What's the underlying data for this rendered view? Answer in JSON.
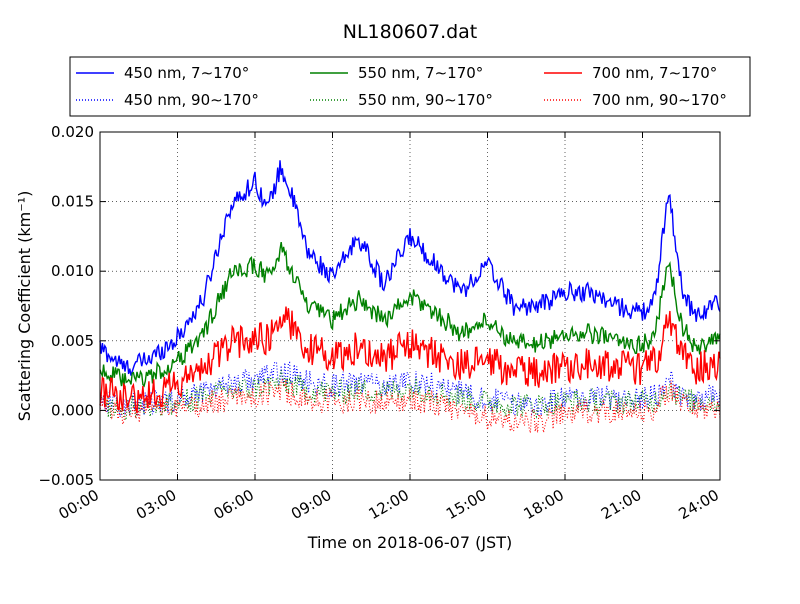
{
  "chart_data": {
    "type": "line",
    "title": "NL180607.dat",
    "xlabel": "Time on 2018-06-07 (JST)",
    "ylabel": "Scattering Coefficient (km⁻¹)",
    "xlim": [
      "00:00",
      "24:00"
    ],
    "ylim": [
      -0.005,
      0.02
    ],
    "x_ticks": [
      "00:00",
      "03:00",
      "06:00",
      "09:00",
      "12:00",
      "15:00",
      "18:00",
      "21:00",
      "24:00"
    ],
    "y_ticks": [
      "−0.005",
      "0.000",
      "0.005",
      "0.010",
      "0.015",
      "0.020"
    ],
    "grid": true,
    "legend_position": "top",
    "x_hours": [
      0,
      1,
      2,
      3,
      4,
      5,
      6,
      6.5,
      7,
      7.5,
      8,
      9,
      10,
      11,
      12,
      13,
      14,
      15,
      16,
      17,
      18,
      19,
      20,
      21,
      21.5,
      22,
      22.5,
      23,
      24
    ],
    "series": [
      {
        "name": "450 nm, 7∼170°",
        "color": "#0000ff",
        "style": "solid",
        "values": [
          0.0045,
          0.003,
          0.0038,
          0.0052,
          0.008,
          0.0145,
          0.0165,
          0.0145,
          0.0175,
          0.015,
          0.0115,
          0.0095,
          0.0125,
          0.009,
          0.0125,
          0.0105,
          0.0085,
          0.0105,
          0.0075,
          0.0075,
          0.0085,
          0.0085,
          0.0075,
          0.007,
          0.008,
          0.016,
          0.009,
          0.0068,
          0.0078
        ]
      },
      {
        "name": "450 nm, 90∼170°",
        "color": "#0000ff",
        "style": "dotted",
        "values": [
          0.0008,
          0.0003,
          0.0005,
          0.0008,
          0.0015,
          0.002,
          0.0022,
          0.0025,
          0.0028,
          0.0025,
          0.002,
          0.0018,
          0.002,
          0.0018,
          0.0022,
          0.0018,
          0.0012,
          0.0008,
          0.0005,
          0.0005,
          0.0008,
          0.001,
          0.0008,
          0.0008,
          0.001,
          0.0022,
          0.0012,
          0.0008,
          0.001
        ]
      },
      {
        "name": "550 nm, 7∼170°",
        "color": "#008000",
        "style": "solid",
        "values": [
          0.003,
          0.002,
          0.0025,
          0.0035,
          0.0055,
          0.0095,
          0.0105,
          0.0095,
          0.0115,
          0.0098,
          0.0075,
          0.0065,
          0.008,
          0.0065,
          0.0082,
          0.007,
          0.0055,
          0.0065,
          0.0048,
          0.0048,
          0.0055,
          0.0055,
          0.005,
          0.0047,
          0.0055,
          0.011,
          0.0062,
          0.0045,
          0.005
        ]
      },
      {
        "name": "550 nm, 90∼170°",
        "color": "#008000",
        "style": "dotted",
        "values": [
          0.0004,
          0.0002,
          0.0003,
          0.0005,
          0.001,
          0.0014,
          0.0016,
          0.0018,
          0.002,
          0.0018,
          0.0014,
          0.0013,
          0.0015,
          0.0013,
          0.0016,
          0.0013,
          0.0009,
          0.0006,
          0.0004,
          0.0004,
          0.0006,
          0.0007,
          0.0006,
          0.0006,
          0.0007,
          0.0017,
          0.0009,
          0.0006,
          0.0007
        ]
      },
      {
        "name": "700 nm, 7∼170°",
        "color": "#ff0000",
        "style": "solid",
        "values": [
          0.0015,
          0.0008,
          0.0012,
          0.0018,
          0.003,
          0.0048,
          0.0052,
          0.0052,
          0.0068,
          0.006,
          0.0045,
          0.0038,
          0.0045,
          0.0038,
          0.0048,
          0.004,
          0.0032,
          0.0035,
          0.0028,
          0.0028,
          0.0032,
          0.0035,
          0.0032,
          0.003,
          0.0035,
          0.0065,
          0.0042,
          0.003,
          0.0035
        ]
      },
      {
        "name": "700 nm, 90∼170°",
        "color": "#ff0000",
        "style": "dotted",
        "values": [
          0.0002,
          -0.0002,
          0.0,
          0.0002,
          0.0005,
          0.0008,
          0.001,
          0.0012,
          0.0015,
          0.0012,
          0.0008,
          0.0006,
          0.0008,
          0.0006,
          0.0008,
          0.0005,
          0.0,
          -0.0005,
          -0.0008,
          -0.0008,
          -0.0003,
          0.0,
          -0.0002,
          -0.0002,
          0.0002,
          0.0015,
          0.0005,
          0.0,
          0.0002
        ]
      }
    ]
  }
}
